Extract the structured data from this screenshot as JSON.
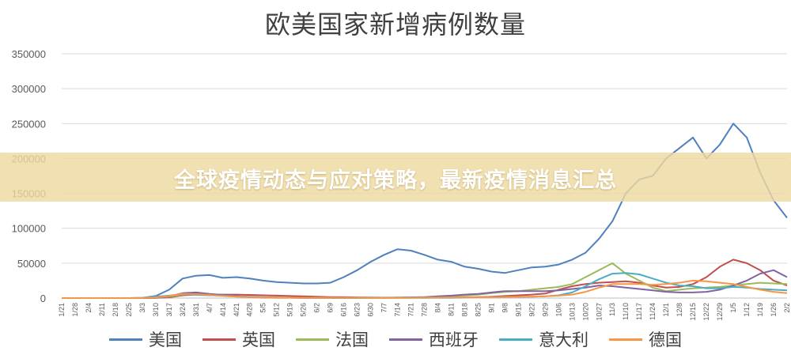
{
  "banner": {
    "text": "全球疫情动态与应对策略，最新疫情消息汇总"
  },
  "chart_data": {
    "type": "line",
    "title": "欧美国家新增病例数量",
    "ylim": [
      0,
      350000
    ],
    "yticks": [
      "0",
      "50000",
      "100000",
      "150000",
      "200000",
      "250000",
      "300000",
      "350000"
    ],
    "grid": true,
    "legend": "bottom",
    "x_ticks": [
      "1/21",
      "1/28",
      "2/4",
      "2/11",
      "2/18",
      "2/25",
      "3/3",
      "3/10",
      "3/17",
      "3/24",
      "3/31",
      "4/7",
      "4/14",
      "4/21",
      "4/28",
      "5/5",
      "5/12",
      "5/19",
      "5/26",
      "6/2",
      "6/9",
      "6/16",
      "6/23",
      "6/30",
      "7/7",
      "7/14",
      "7/21",
      "7/28",
      "8/4",
      "8/11",
      "8/18",
      "8/25",
      "9/1",
      "9/8",
      "9/15",
      "9/22",
      "9/29",
      "10/6",
      "10/13",
      "10/20",
      "10/27",
      "11/3",
      "11/10",
      "11/17",
      "11/24",
      "12/1",
      "12/8",
      "12/15",
      "12/22",
      "12/29",
      "1/5",
      "1/12",
      "1/19",
      "1/26",
      "2/2"
    ],
    "series": [
      {
        "name": "美国",
        "color": "#4f81bd",
        "values": [
          0,
          0,
          0,
          0,
          0,
          0,
          200,
          3000,
          12000,
          28000,
          32000,
          33000,
          29000,
          30000,
          28000,
          25000,
          23000,
          22000,
          21000,
          21000,
          22000,
          30000,
          40000,
          52000,
          62000,
          70000,
          68000,
          62000,
          55000,
          52000,
          45000,
          42000,
          38000,
          36000,
          40000,
          44000,
          45000,
          48000,
          55000,
          65000,
          85000,
          110000,
          150000,
          170000,
          175000,
          200000,
          215000,
          230000,
          200000,
          220000,
          250000,
          230000,
          180000,
          140000,
          115000
        ]
      },
      {
        "name": "英国",
        "color": "#c0504d",
        "values": [
          0,
          0,
          0,
          0,
          0,
          0,
          0,
          300,
          1000,
          4000,
          5000,
          5000,
          5000,
          5000,
          4500,
          4000,
          3500,
          3000,
          2500,
          2000,
          1500,
          1200,
          1000,
          800,
          700,
          700,
          800,
          900,
          1000,
          1100,
          1200,
          1500,
          2000,
          3000,
          4000,
          5000,
          6500,
          12000,
          17000,
          20000,
          22000,
          23000,
          24000,
          22000,
          18000,
          15000,
          16000,
          20000,
          30000,
          45000,
          55000,
          50000,
          40000,
          25000,
          18000
        ]
      },
      {
        "name": "法国",
        "color": "#9bbb59",
        "values": [
          0,
          0,
          0,
          0,
          0,
          0,
          0,
          500,
          2000,
          5000,
          6000,
          5000,
          4000,
          2500,
          1500,
          1000,
          800,
          600,
          500,
          500,
          500,
          500,
          500,
          500,
          600,
          700,
          800,
          1000,
          1500,
          2500,
          4000,
          5000,
          7000,
          9000,
          10000,
          12000,
          14000,
          16000,
          20000,
          30000,
          40000,
          50000,
          35000,
          25000,
          15000,
          10000,
          12000,
          14000,
          15000,
          16000,
          18000,
          20000,
          22000,
          21000,
          20000
        ]
      },
      {
        "name": "西班牙",
        "color": "#8064a2",
        "values": [
          0,
          0,
          0,
          0,
          0,
          0,
          0,
          500,
          2500,
          7000,
          8000,
          6000,
          4500,
          3000,
          1500,
          800,
          500,
          400,
          300,
          300,
          300,
          300,
          300,
          400,
          500,
          700,
          1000,
          1500,
          2500,
          3500,
          5000,
          6000,
          8000,
          10000,
          10000,
          10000,
          10000,
          11000,
          13000,
          15000,
          18000,
          17000,
          15000,
          13000,
          11000,
          9000,
          8000,
          8000,
          9000,
          12000,
          18000,
          25000,
          35000,
          40000,
          30000
        ]
      },
      {
        "name": "意大利",
        "color": "#4bacc6",
        "values": [
          0,
          0,
          0,
          0,
          0,
          0,
          500,
          2000,
          3500,
          5500,
          4500,
          4000,
          3500,
          2500,
          2000,
          1200,
          800,
          600,
          400,
          300,
          250,
          250,
          250,
          250,
          250,
          300,
          300,
          350,
          400,
          500,
          800,
          1200,
          1500,
          1600,
          1700,
          2000,
          2500,
          4000,
          8000,
          17000,
          27000,
          35000,
          36000,
          34000,
          28000,
          22000,
          18000,
          17000,
          14000,
          14000,
          16000,
          15000,
          13000,
          12000,
          11000
        ]
      },
      {
        "name": "德国",
        "color": "#f79646",
        "values": [
          0,
          0,
          0,
          0,
          0,
          0,
          100,
          800,
          3000,
          6000,
          5500,
          4500,
          3000,
          2000,
          1500,
          1000,
          700,
          600,
          500,
          400,
          400,
          500,
          600,
          500,
          450,
          500,
          600,
          700,
          900,
          1100,
          1200,
          1300,
          1400,
          1500,
          1800,
          2000,
          2500,
          3500,
          5000,
          9000,
          15000,
          20000,
          20000,
          20000,
          19000,
          20000,
          22000,
          25000,
          24000,
          22000,
          20000,
          16000,
          12000,
          9000,
          7000
        ]
      }
    ]
  }
}
